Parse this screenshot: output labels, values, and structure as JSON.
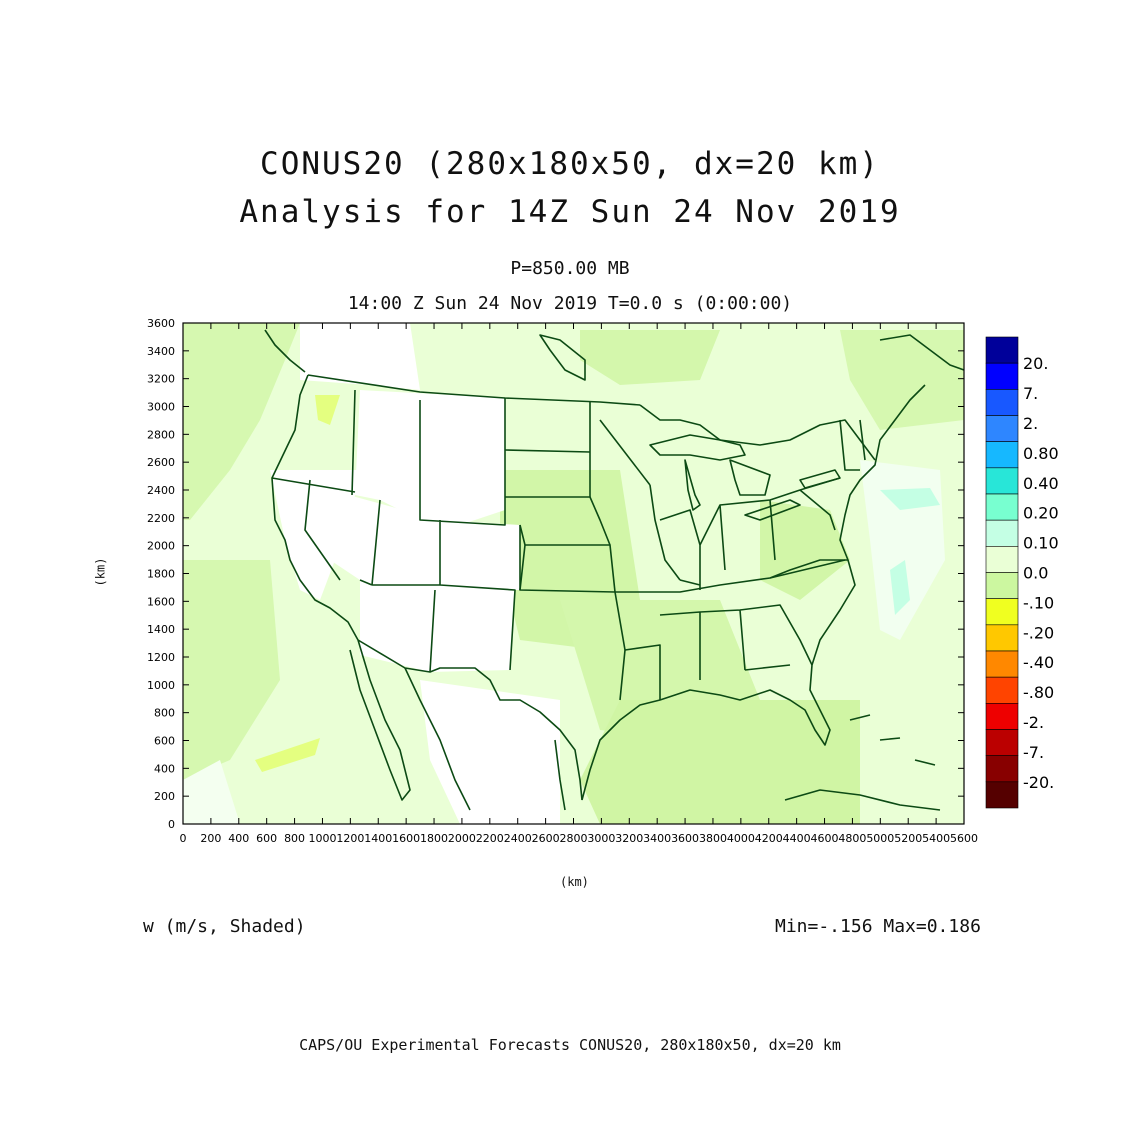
{
  "title": {
    "line1": "CONUS20 (280x180x50, dx=20 km)",
    "line2": "Analysis for 14Z Sun 24 Nov 2019"
  },
  "subtitle": {
    "level": "P=850.00 MB",
    "time": "14:00 Z Sun 24 Nov 2019    T=0.0 s (0:00:00)"
  },
  "axes": {
    "x_unit": "(km)",
    "y_unit": "(km)",
    "x_range": [
      0,
      5600
    ],
    "y_range": [
      0,
      3600
    ],
    "x_ticks": [
      0,
      200,
      400,
      600,
      800,
      1000,
      1200,
      1400,
      1600,
      1800,
      2000,
      2200,
      2400,
      2600,
      2800,
      3000,
      3200,
      3400,
      3600,
      3800,
      4000,
      4200,
      4400,
      4600,
      4800,
      5000,
      5200,
      5400,
      5600
    ],
    "y_ticks": [
      0,
      200,
      400,
      600,
      800,
      1000,
      1200,
      1400,
      1600,
      1800,
      2000,
      2200,
      2400,
      2600,
      2800,
      3000,
      3200,
      3400,
      3600
    ]
  },
  "colorbar": {
    "labels": [
      "20.",
      "7.",
      "2.",
      "0.80",
      "0.40",
      "0.20",
      "0.10",
      "0.0",
      "-.10",
      "-.20",
      "-.40",
      "-.80",
      "-2.",
      "-7.",
      "-20."
    ],
    "colors": [
      "#00009a",
      "#0000ff",
      "#1858ff",
      "#2e86ff",
      "#16b8ff",
      "#28e6d8",
      "#78ffd0",
      "#c4ffe4",
      "#eaffd6",
      "#ccf7a0",
      "#f0ff20",
      "#ffc800",
      "#ff8800",
      "#ff4400",
      "#ee0000",
      "#bb0000",
      "#880000",
      "#550000"
    ]
  },
  "variable_label": "w (m/s, Shaded)",
  "minmax": "Min=-.156 Max=0.186",
  "footer": "CAPS/OU Experimental Forecasts  CONUS20, 280x180x50, dx=20 km",
  "colors": {
    "map_lines": "#0c4a14",
    "field_base": "#eaffd6",
    "field_negative": "#ccf7a0",
    "field_zero": "#ffffff"
  }
}
